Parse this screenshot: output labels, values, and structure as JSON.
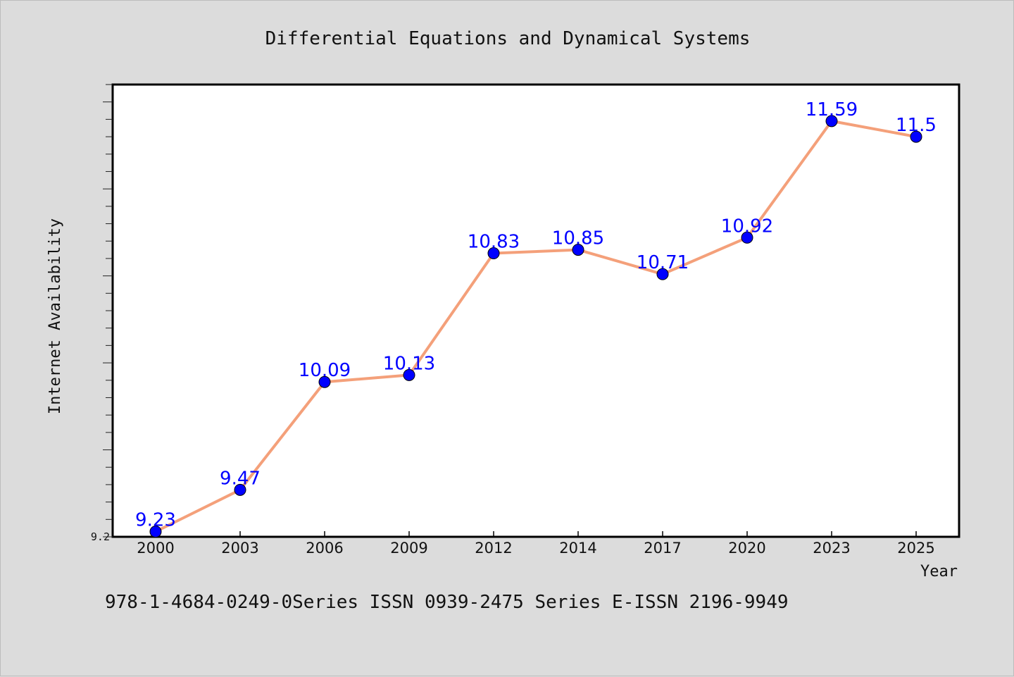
{
  "chart_data": {
    "type": "line",
    "title": "Differential Equations and Dynamical Systems",
    "xlabel": "Year",
    "ylabel": "Internet Availability",
    "categories": [
      "2000",
      "2003",
      "2006",
      "2009",
      "2012",
      "2014",
      "2017",
      "2020",
      "2023",
      "2025"
    ],
    "series": [
      {
        "values": [
          9.23,
          9.47,
          10.09,
          10.13,
          10.83,
          10.85,
          10.71,
          10.92,
          11.59,
          11.5
        ],
        "data_labels": [
          "9.23",
          "9.47",
          "10.09",
          "10.13",
          "10.83",
          "10.85",
          "10.71",
          "10.92",
          "11.59",
          "11.5"
        ]
      }
    ],
    "ylim": [
      9.2,
      11.8
    ],
    "y_tick_labels": [
      "9.2"
    ],
    "grid": false,
    "line_color": "#f4a07a",
    "marker_color": "#0000ff",
    "label_color": "#0000ff"
  },
  "footnote": "978-1-4684-0249-0Series ISSN 0939-2475 Series E-ISSN 2196-9949"
}
